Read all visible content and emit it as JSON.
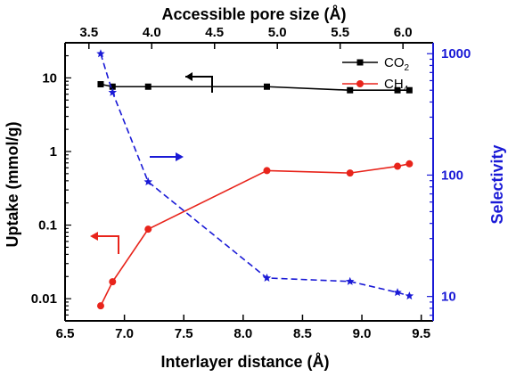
{
  "chart_data": {
    "type": "line",
    "x_label": "Interlayer distance (Å)",
    "x_ticks": [
      "6.5",
      "7.0",
      "7.5",
      "8.0",
      "8.5",
      "9.0",
      "9.5"
    ],
    "x_range": [
      6.5,
      9.6
    ],
    "top_x_label": "Accessible pore size (Å)",
    "top_x_ticks": [
      "3.5",
      "4.0",
      "4.5",
      "5.0",
      "5.5",
      "6.0"
    ],
    "top_x_range": [
      3.31,
      6.24
    ],
    "left_y_label": "Uptake (mmol/g)",
    "left_y_scale": "log",
    "left_y_ticks": [
      "10",
      "1",
      "0.1",
      "0.01"
    ],
    "left_y_range": [
      0.005,
      30
    ],
    "right_y_label": "Selectivity",
    "right_y_scale": "log",
    "right_y_ticks": [
      "1000",
      "100",
      "10"
    ],
    "right_y_range": [
      6.3,
      1230
    ],
    "series": [
      {
        "name": "CO",
        "name_sub": "2",
        "axis": "left",
        "color": "#000000",
        "marker": "square",
        "line": "solid",
        "x": [
          6.8,
          6.9,
          7.2,
          8.2,
          8.9,
          9.3,
          9.4
        ],
        "y": [
          8.2,
          7.6,
          7.6,
          7.6,
          6.8,
          6.8,
          6.8
        ]
      },
      {
        "name": "CH",
        "name_sub": "4",
        "axis": "left",
        "color": "#e8241b",
        "marker": "circle",
        "line": "solid",
        "x": [
          6.8,
          6.9,
          7.2,
          8.2,
          8.9,
          9.3,
          9.4
        ],
        "y": [
          0.008,
          0.017,
          0.088,
          0.55,
          0.51,
          0.63,
          0.68
        ]
      },
      {
        "name": "",
        "axis": "right",
        "color": "#1a1ad6",
        "marker": "star",
        "line": "dashed",
        "x": [
          6.8,
          6.9,
          7.2,
          8.2,
          8.9,
          9.3,
          9.4
        ],
        "y": [
          1000,
          480,
          88,
          14.2,
          13.3,
          10.8,
          10.1
        ]
      }
    ],
    "legend_position": "top-right",
    "grid": false
  }
}
